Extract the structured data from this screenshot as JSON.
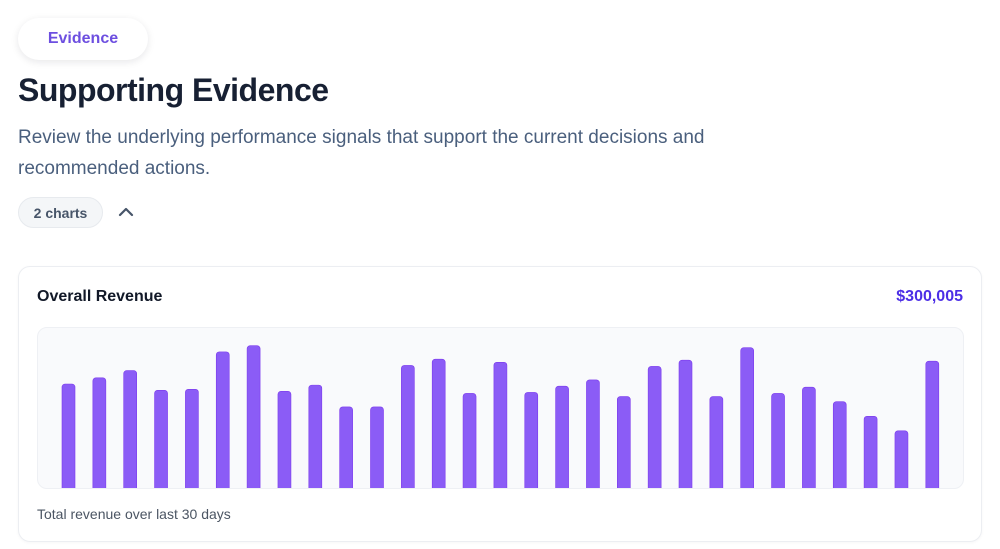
{
  "header": {
    "badge": "Evidence",
    "title": "Supporting Evidence",
    "description": "Review the underlying performance signals that support the current decisions and recommended actions.",
    "chart_count": "2 charts",
    "collapse_icon": "chevron-up-icon"
  },
  "card": {
    "title": "Overall Revenue",
    "total": "$300,005",
    "caption": "Total revenue over last 30 days"
  },
  "colors": {
    "accent": "#6d4fe0",
    "bar": "#8b5cf6",
    "total": "#4c2ee6"
  },
  "chart_data": {
    "type": "bar",
    "title": "Overall Revenue",
    "xlabel": "",
    "ylabel": "",
    "ylim": [
      0,
      15600
    ],
    "grid": false,
    "values": [
      10200,
      10800,
      11500,
      9600,
      9700,
      13300,
      13900,
      9500,
      10100,
      8000,
      8000,
      12000,
      12600,
      9300,
      12300,
      9400,
      10000,
      10600,
      9000,
      11900,
      12500,
      9000,
      13700,
      9300,
      9900,
      8500,
      7100,
      5700,
      12400
    ]
  }
}
